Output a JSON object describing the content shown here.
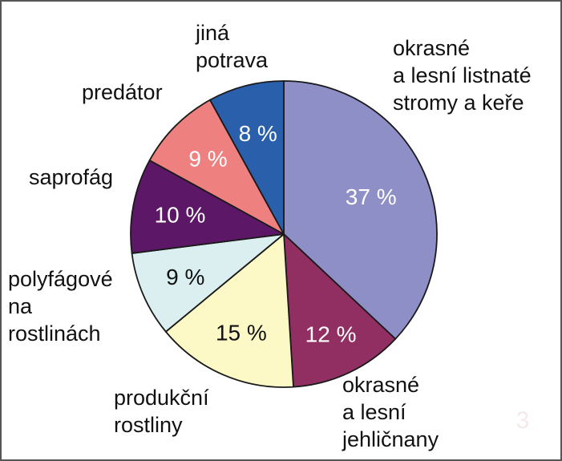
{
  "chart_data": {
    "type": "pie",
    "start_angle_deg": 0,
    "direction": "clockwise",
    "slices": [
      {
        "label_lines": [
          "okrasné",
          "a lesní listnaté",
          "stromy a keře"
        ],
        "value": 37,
        "value_text": "37 %",
        "color": "#8e8fc7",
        "text_color": "#ffffff"
      },
      {
        "label_lines": [
          "okrasné",
          "a lesní",
          "jehličnany"
        ],
        "value": 12,
        "value_text": "12 %",
        "color": "#922f62",
        "text_color": "#ffffff"
      },
      {
        "label_lines": [
          "produkční",
          "rostliny"
        ],
        "value": 15,
        "value_text": "15 %",
        "color": "#fdf9c7",
        "text_color": "#111111"
      },
      {
        "label_lines": [
          "polyfágové",
          "na",
          "rostlinách"
        ],
        "value": 9,
        "value_text": "9 %",
        "color": "#dbeff1",
        "text_color": "#111111"
      },
      {
        "label_lines": [
          "saprofág"
        ],
        "value": 10,
        "value_text": "10 %",
        "color": "#5c1866",
        "text_color": "#ffffff"
      },
      {
        "label_lines": [
          "predátor"
        ],
        "value": 9,
        "value_text": "9 %",
        "color": "#ef8080",
        "text_color": "#ffffff"
      },
      {
        "label_lines": [
          "jiná",
          "potrava"
        ],
        "value": 8,
        "value_text": "8 %",
        "color": "#2a5fab",
        "text_color": "#ffffff"
      }
    ]
  },
  "corner_mark": "3"
}
